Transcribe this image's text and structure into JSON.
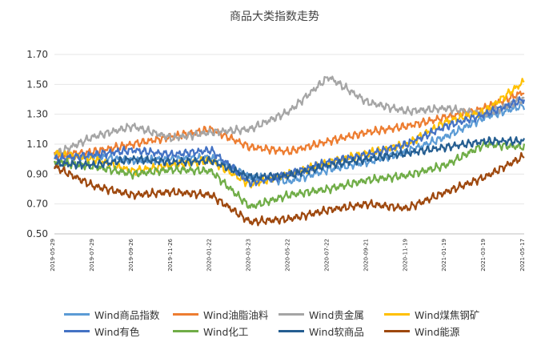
{
  "chart_data": {
    "type": "line",
    "title": "商品大类指数走势",
    "ylim": [
      0.5,
      1.7
    ],
    "yticks": [
      "0.50",
      "0.70",
      "0.90",
      "1.10",
      "1.30",
      "1.50",
      "1.70"
    ],
    "x_start": "2019-05-29",
    "x_end": "2021-05-17",
    "x": [
      "2019-05-29",
      "2019-07-29",
      "2019-09-26",
      "2019-11-26",
      "2020-01-22",
      "2020-03-23",
      "2020-05-22",
      "2020-07-22",
      "2020-09-21",
      "2020-11-19",
      "2021-01-19",
      "2021-03-19",
      "2021-05-17"
    ],
    "legend_position": "bottom",
    "series": [
      {
        "name": "Wind商品指数",
        "color": "#5b9bd5",
        "values": [
          1.0,
          1.02,
          0.99,
          1.0,
          1.01,
          0.88,
          0.85,
          0.93,
          0.98,
          1.05,
          1.15,
          1.28,
          1.36
        ]
      },
      {
        "name": "Wind油脂油料",
        "color": "#ed7d31",
        "values": [
          1.02,
          1.05,
          1.1,
          1.15,
          1.2,
          1.08,
          1.05,
          1.12,
          1.18,
          1.22,
          1.28,
          1.34,
          1.45
        ]
      },
      {
        "name": "Wind贵金属",
        "color": "#a5a5a5",
        "values": [
          1.03,
          1.15,
          1.22,
          1.14,
          1.18,
          1.2,
          1.32,
          1.55,
          1.38,
          1.32,
          1.34,
          1.3,
          1.4
        ]
      },
      {
        "name": "Wind煤焦钢矿",
        "color": "#ffc000",
        "values": [
          1.04,
          1.0,
          0.92,
          0.96,
          0.99,
          0.83,
          0.9,
          0.98,
          1.04,
          1.1,
          1.25,
          1.32,
          1.52
        ]
      },
      {
        "name": "Wind有色",
        "color": "#4472c4",
        "values": [
          1.0,
          1.03,
          1.06,
          1.03,
          1.06,
          0.84,
          0.9,
          0.98,
          1.03,
          1.1,
          1.22,
          1.3,
          1.4
        ]
      },
      {
        "name": "Wind化工",
        "color": "#70ad47",
        "values": [
          0.98,
          0.95,
          0.9,
          0.93,
          0.92,
          0.68,
          0.76,
          0.8,
          0.86,
          0.89,
          0.96,
          1.1,
          1.08
        ]
      },
      {
        "name": "Wind软商品",
        "color": "#255e91",
        "values": [
          0.97,
          0.96,
          1.0,
          0.98,
          0.99,
          0.88,
          0.89,
          0.96,
          1.0,
          1.04,
          1.08,
          1.12,
          1.12
        ]
      },
      {
        "name": "Wind能源",
        "color": "#9e480e",
        "values": [
          0.95,
          0.82,
          0.76,
          0.78,
          0.76,
          0.58,
          0.6,
          0.66,
          0.7,
          0.67,
          0.78,
          0.88,
          1.02
        ]
      }
    ]
  }
}
